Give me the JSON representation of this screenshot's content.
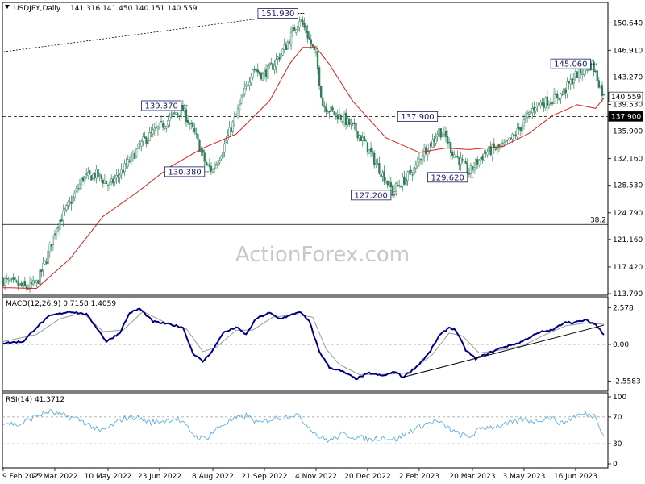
{
  "chart_data": [
    {
      "type": "candlestick",
      "symbol_label": "USDJPY,Daily",
      "ohlc_header": "141.316 141.450 140.151 140.559",
      "watermark": "ActionForex.com",
      "ylim": [
        113.79,
        153.2
      ],
      "y_ticks": [
        "150.640",
        "146.910",
        "143.270",
        "139.530",
        "135.900",
        "132.160",
        "128.530",
        "124.790",
        "121.160",
        "117.420",
        "113.790"
      ],
      "y_tick_values": [
        150.64,
        146.91,
        143.27,
        139.53,
        135.9,
        132.16,
        128.53,
        124.79,
        121.16,
        117.42,
        113.79
      ],
      "x_ticks": [
        "9 Feb 2022",
        "25 Mar 2022",
        "10 May 2022",
        "23 Jun 2022",
        "8 Aug 2022",
        "21 Sep 2022",
        "4 Nov 2022",
        "20 Dec 2022",
        "2 Feb 2023",
        "20 Mar 2023",
        "3 May 2023",
        "16 Jun 2023"
      ],
      "x_tick_index": [
        0,
        31,
        63,
        94,
        126,
        157,
        188,
        219,
        250,
        282,
        313,
        344
      ],
      "n_bars": 362,
      "price_anchors": [
        [
          0,
          115.6
        ],
        [
          8,
          115.0
        ],
        [
          14,
          114.6
        ],
        [
          20,
          115.2
        ],
        [
          26,
          118.5
        ],
        [
          32,
          123.0
        ],
        [
          40,
          126.0
        ],
        [
          48,
          129.5
        ],
        [
          56,
          130.0
        ],
        [
          64,
          128.5
        ],
        [
          74,
          131.2
        ],
        [
          84,
          134.5
        ],
        [
          96,
          136.8
        ],
        [
          104,
          138.4
        ],
        [
          108,
          138.8
        ],
        [
          116,
          135.0
        ],
        [
          122,
          131.2
        ],
        [
          126,
          130.6
        ],
        [
          132,
          133.5
        ],
        [
          140,
          138.0
        ],
        [
          150,
          144.5
        ],
        [
          156,
          143.5
        ],
        [
          162,
          144.8
        ],
        [
          170,
          147.5
        ],
        [
          178,
          151.2
        ],
        [
          182,
          149.5
        ],
        [
          188,
          146.0
        ],
        [
          192,
          139.5
        ],
        [
          198,
          138.5
        ],
        [
          205,
          137.5
        ],
        [
          212,
          136.0
        ],
        [
          218,
          134.0
        ],
        [
          224,
          131.5
        ],
        [
          234,
          127.8
        ],
        [
          242,
          129.5
        ],
        [
          248,
          131.0
        ],
        [
          252,
          133.0
        ],
        [
          258,
          134.5
        ],
        [
          262,
          136.0
        ],
        [
          266,
          135.0
        ],
        [
          270,
          133.0
        ],
        [
          276,
          131.5
        ],
        [
          280,
          130.2
        ],
        [
          284,
          131.5
        ],
        [
          290,
          133.0
        ],
        [
          296,
          133.5
        ],
        [
          302,
          134.0
        ],
        [
          308,
          135.5
        ],
        [
          314,
          137.5
        ],
        [
          320,
          139.5
        ],
        [
          328,
          140.0
        ],
        [
          336,
          141.0
        ],
        [
          344,
          143.5
        ],
        [
          350,
          144.5
        ],
        [
          354,
          145.0
        ],
        [
          358,
          142.5
        ],
        [
          361,
          140.559
        ]
      ],
      "ma_anchors": [
        [
          0,
          114.6
        ],
        [
          20,
          114.5
        ],
        [
          40,
          118.5
        ],
        [
          60,
          124.3
        ],
        [
          80,
          127.5
        ],
        [
          100,
          131.0
        ],
        [
          120,
          133.6
        ],
        [
          140,
          135.5
        ],
        [
          160,
          140.0
        ],
        [
          172,
          145.0
        ],
        [
          180,
          147.3
        ],
        [
          188,
          147.3
        ],
        [
          196,
          145.0
        ],
        [
          210,
          140.0
        ],
        [
          230,
          135.0
        ],
        [
          250,
          133.0
        ],
        [
          266,
          133.6
        ],
        [
          280,
          133.4
        ],
        [
          300,
          133.8
        ],
        [
          316,
          135.6
        ],
        [
          330,
          138.0
        ],
        [
          345,
          139.5
        ],
        [
          356,
          139.0
        ],
        [
          361,
          140.4
        ]
      ],
      "hlines": [
        {
          "value": 137.9,
          "style": "dashed",
          "tag": "137.900"
        },
        {
          "value": 123.2,
          "style": "solid",
          "label": "38.2"
        }
      ],
      "last_price_tag": "140.559",
      "trendline": {
        "from": [
          0,
          146.7
        ],
        "to": [
          178,
          151.93
        ]
      },
      "callouts": [
        {
          "label": "151.930",
          "value": 151.93,
          "bar": 178,
          "side": "left"
        },
        {
          "label": "139.370",
          "value": 139.37,
          "bar": 108,
          "side": "left"
        },
        {
          "label": "130.380",
          "value": 130.38,
          "bar": 122,
          "side": "left"
        },
        {
          "label": "127.200",
          "value": 127.2,
          "bar": 234,
          "side": "left"
        },
        {
          "label": "137.900",
          "value": 137.9,
          "bar": 262,
          "side": "left"
        },
        {
          "label": "129.620",
          "value": 129.62,
          "bar": 280,
          "side": "left"
        },
        {
          "label": "145.060",
          "value": 145.06,
          "bar": 354,
          "side": "left"
        }
      ],
      "colors": {
        "candle": "#2e7d57",
        "ma": "#d62020",
        "axis": "#000000"
      }
    },
    {
      "type": "line",
      "label": "MACD(12,26,9) 0.7158 1.4059",
      "ylim": [
        -3.1,
        3.1
      ],
      "y_ticks": [
        "2.578",
        "0.00",
        "-2.5583"
      ],
      "y_tick_values": [
        2.578,
        0.0,
        -2.5583
      ],
      "macd_anchors": [
        [
          0,
          0.1
        ],
        [
          12,
          0.2
        ],
        [
          20,
          1.2
        ],
        [
          28,
          2.0
        ],
        [
          40,
          2.3
        ],
        [
          50,
          2.1
        ],
        [
          56,
          1.2
        ],
        [
          62,
          0.2
        ],
        [
          70,
          0.8
        ],
        [
          76,
          2.2
        ],
        [
          82,
          2.5
        ],
        [
          90,
          1.6
        ],
        [
          100,
          1.4
        ],
        [
          108,
          1.2
        ],
        [
          114,
          -0.6
        ],
        [
          120,
          -1.2
        ],
        [
          126,
          -0.4
        ],
        [
          132,
          0.8
        ],
        [
          140,
          1.2
        ],
        [
          146,
          0.7
        ],
        [
          152,
          1.8
        ],
        [
          160,
          2.2
        ],
        [
          166,
          1.8
        ],
        [
          172,
          2.0
        ],
        [
          178,
          2.3
        ],
        [
          184,
          1.6
        ],
        [
          190,
          -0.5
        ],
        [
          196,
          -1.6
        ],
        [
          204,
          -1.9
        ],
        [
          212,
          -2.4
        ],
        [
          220,
          -2.0
        ],
        [
          228,
          -2.2
        ],
        [
          236,
          -1.9
        ],
        [
          240,
          -2.3
        ],
        [
          248,
          -1.6
        ],
        [
          256,
          -0.6
        ],
        [
          262,
          0.6
        ],
        [
          268,
          1.2
        ],
        [
          272,
          1.0
        ],
        [
          278,
          -0.4
        ],
        [
          284,
          -1.0
        ],
        [
          292,
          -0.6
        ],
        [
          300,
          -0.2
        ],
        [
          310,
          0.1
        ],
        [
          318,
          0.6
        ],
        [
          324,
          0.9
        ],
        [
          330,
          1.0
        ],
        [
          338,
          1.6
        ],
        [
          342,
          1.5
        ],
        [
          350,
          1.7
        ],
        [
          356,
          1.4
        ],
        [
          361,
          0.7158
        ]
      ],
      "signal_anchors": [
        [
          0,
          0.2
        ],
        [
          20,
          0.7
        ],
        [
          34,
          1.8
        ],
        [
          48,
          2.2
        ],
        [
          60,
          0.9
        ],
        [
          72,
          1.0
        ],
        [
          84,
          2.3
        ],
        [
          98,
          1.5
        ],
        [
          110,
          1.1
        ],
        [
          120,
          -0.5
        ],
        [
          128,
          -0.2
        ],
        [
          140,
          1.0
        ],
        [
          150,
          1.0
        ],
        [
          162,
          1.9
        ],
        [
          176,
          2.1
        ],
        [
          186,
          1.9
        ],
        [
          194,
          -0.3
        ],
        [
          202,
          -1.4
        ],
        [
          214,
          -2.1
        ],
        [
          228,
          -2.1
        ],
        [
          244,
          -2.0
        ],
        [
          258,
          -0.7
        ],
        [
          268,
          0.8
        ],
        [
          276,
          0.6
        ],
        [
          286,
          -0.6
        ],
        [
          298,
          -0.4
        ],
        [
          312,
          -0.1
        ],
        [
          326,
          0.7
        ],
        [
          338,
          1.3
        ],
        [
          350,
          1.5
        ],
        [
          361,
          1.4059
        ]
      ],
      "trendline": {
        "from": [
          240,
          -2.3
        ],
        "to": [
          361,
          1.35
        ]
      },
      "colors": {
        "macd": "#000080",
        "signal": "#999999"
      }
    },
    {
      "type": "line",
      "label": "RSI(14) 41.3712",
      "ylim": [
        0,
        100
      ],
      "y_ticks": [
        "100",
        "70",
        "30",
        "0"
      ],
      "y_tick_values": [
        100,
        70,
        30,
        0
      ],
      "levels": [
        70,
        30
      ],
      "rsi_anchors": [
        [
          0,
          62
        ],
        [
          10,
          58
        ],
        [
          20,
          72
        ],
        [
          28,
          78
        ],
        [
          36,
          72
        ],
        [
          44,
          68
        ],
        [
          52,
          58
        ],
        [
          58,
          48
        ],
        [
          64,
          55
        ],
        [
          72,
          68
        ],
        [
          80,
          70
        ],
        [
          88,
          62
        ],
        [
          96,
          64
        ],
        [
          104,
          68
        ],
        [
          110,
          56
        ],
        [
          116,
          40
        ],
        [
          122,
          38
        ],
        [
          128,
          52
        ],
        [
          136,
          64
        ],
        [
          146,
          72
        ],
        [
          154,
          60
        ],
        [
          160,
          66
        ],
        [
          168,
          70
        ],
        [
          176,
          74
        ],
        [
          182,
          60
        ],
        [
          190,
          40
        ],
        [
          196,
          35
        ],
        [
          204,
          44
        ],
        [
          212,
          40
        ],
        [
          220,
          36
        ],
        [
          228,
          40
        ],
        [
          236,
          36
        ],
        [
          244,
          48
        ],
        [
          252,
          58
        ],
        [
          260,
          64
        ],
        [
          266,
          56
        ],
        [
          272,
          46
        ],
        [
          280,
          40
        ],
        [
          288,
          54
        ],
        [
          296,
          56
        ],
        [
          304,
          60
        ],
        [
          312,
          66
        ],
        [
          320,
          64
        ],
        [
          328,
          70
        ],
        [
          336,
          60
        ],
        [
          344,
          72
        ],
        [
          350,
          74
        ],
        [
          356,
          72
        ],
        [
          361,
          41.3712
        ]
      ],
      "colors": {
        "rsi": "#4da6e0"
      }
    }
  ]
}
